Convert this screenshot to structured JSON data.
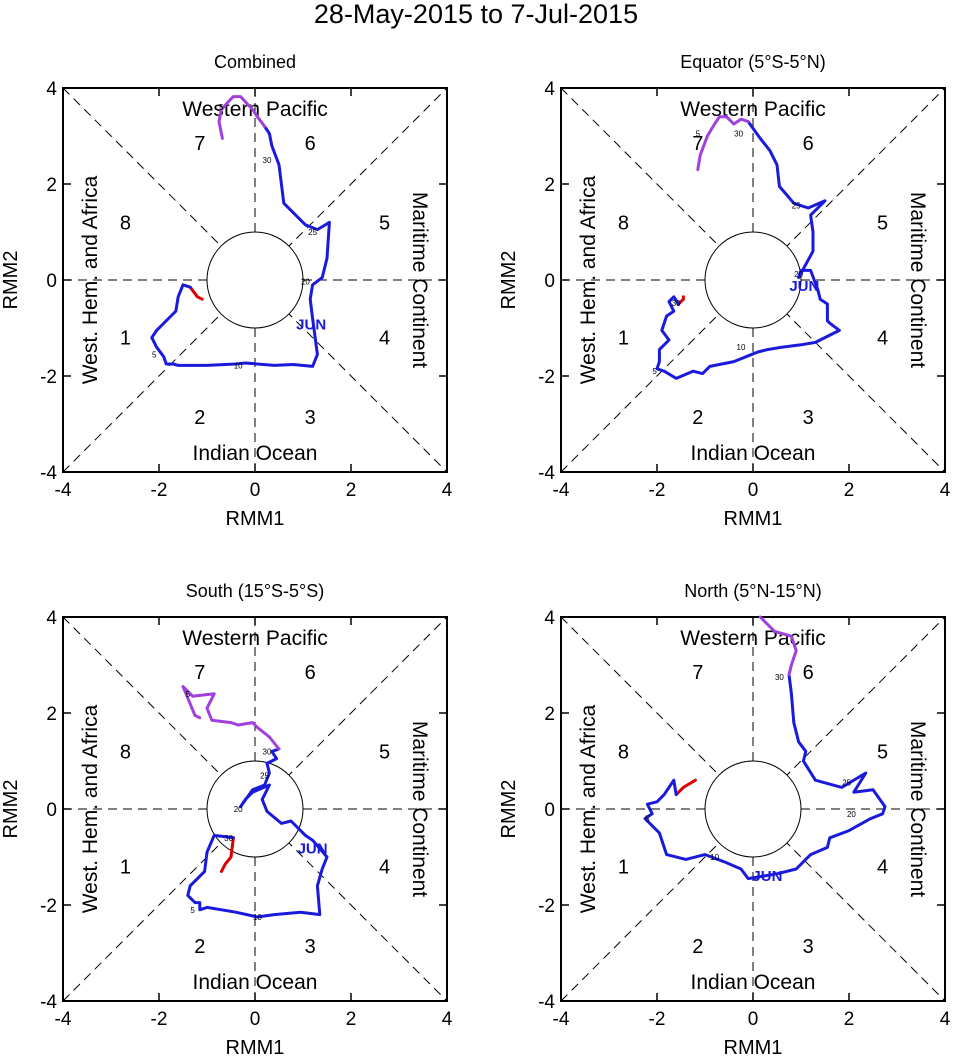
{
  "figure": {
    "title": "28-May-2015 to 7-Jul-2015"
  },
  "phase_labels": {
    "top": "Western Pacific",
    "bottom": "Indian Ocean",
    "left": "West. Hem. and Africa",
    "right": "Maritime Continent",
    "phases": [
      "1",
      "2",
      "3",
      "4",
      "5",
      "6",
      "7",
      "8"
    ]
  },
  "colors": {
    "may": "#dd0000",
    "jun": "#1a1add",
    "jul": "#a040dd",
    "axis": "#000000",
    "jun_label": "#1a1add"
  },
  "chart_data": [
    {
      "type": "line",
      "title": "Combined",
      "xlabel": "RMM1",
      "ylabel": "RMM2",
      "xlim": [
        -4,
        4
      ],
      "ylim": [
        -4,
        4
      ],
      "xticks": [
        "-4",
        "-2",
        "0",
        "2",
        "4"
      ],
      "yticks": [
        "-4",
        "-2",
        "0",
        "2",
        "4"
      ],
      "month_label": {
        "text": "JUN",
        "x": 1.17,
        "y": -0.93
      },
      "series": [
        {
          "name": "May",
          "color": "#dd0000",
          "points": [
            [
              -1.35,
              -0.15
            ],
            [
              -1.2,
              -0.35
            ],
            [
              -1.1,
              -0.4
            ]
          ]
        },
        {
          "name": "Jun",
          "color": "#1a1add",
          "points": [
            [
              -1.35,
              -0.15
            ],
            [
              -1.5,
              -0.1
            ],
            [
              -1.6,
              -0.35
            ],
            [
              -1.65,
              -0.65
            ],
            [
              -1.75,
              -0.75
            ],
            [
              -2.05,
              -1.05
            ],
            [
              -2.15,
              -1.2
            ],
            [
              -2.05,
              -1.4
            ],
            [
              -1.9,
              -1.6
            ],
            [
              -1.85,
              -1.75
            ],
            [
              -1.7,
              -1.75
            ],
            [
              -1.6,
              -1.78
            ],
            [
              -1.0,
              -1.78
            ],
            [
              -0.4,
              -1.75
            ],
            [
              -0.2,
              -1.73
            ],
            [
              0.4,
              -1.78
            ],
            [
              0.8,
              -1.76
            ],
            [
              1.2,
              -1.8
            ],
            [
              1.3,
              -1.55
            ],
            [
              1.2,
              -0.8
            ],
            [
              1.15,
              -0.4
            ],
            [
              1.2,
              -0.1
            ],
            [
              1.4,
              0.05
            ],
            [
              1.5,
              0.45
            ],
            [
              1.55,
              1.2
            ],
            [
              1.3,
              1.05
            ],
            [
              1.05,
              1.15
            ],
            [
              0.8,
              1.4
            ],
            [
              0.6,
              1.6
            ],
            [
              0.55,
              2.0
            ],
            [
              0.5,
              2.4
            ],
            [
              0.35,
              2.8
            ],
            [
              0.3,
              3.05
            ],
            [
              0.2,
              3.2
            ]
          ]
        },
        {
          "name": "Jul",
          "color": "#a040dd",
          "points": [
            [
              0.2,
              3.2
            ],
            [
              0.05,
              3.4
            ],
            [
              -0.05,
              3.55
            ],
            [
              -0.3,
              3.82
            ],
            [
              -0.45,
              3.82
            ],
            [
              -0.55,
              3.72
            ],
            [
              -0.7,
              3.55
            ],
            [
              -0.75,
              3.3
            ],
            [
              -0.68,
              2.95
            ]
          ]
        }
      ],
      "day_labels": [
        {
          "text": "5",
          "x": -2.1,
          "y": -1.55
        },
        {
          "text": "10",
          "x": -0.35,
          "y": -1.78
        },
        {
          "text": "20",
          "x": 1.05,
          "y": -0.03
        },
        {
          "text": "25",
          "x": 1.2,
          "y": 1.0
        },
        {
          "text": "30",
          "x": 0.25,
          "y": 2.5
        },
        {
          "text": "5",
          "x": -0.7,
          "y": 3.6
        }
      ]
    },
    {
      "type": "line",
      "title": "Equator (5°S-5°N)",
      "xlabel": "RMM1",
      "ylabel": "RMM2",
      "xlim": [
        -4,
        4
      ],
      "ylim": [
        -4,
        4
      ],
      "xticks": [
        "-4",
        "-2",
        "0",
        "2",
        "4"
      ],
      "yticks": [
        "-4",
        "-2",
        "0",
        "2",
        "4"
      ],
      "month_label": {
        "text": "JUN",
        "x": 1.07,
        "y": -0.12
      },
      "series": [
        {
          "name": "May",
          "color": "#dd0000",
          "points": [
            [
              -1.55,
              -0.5
            ],
            [
              -1.45,
              -0.4
            ],
            [
              -1.45,
              -0.35
            ]
          ]
        },
        {
          "name": "Jun",
          "color": "#1a1add",
          "points": [
            [
              -1.55,
              -0.5
            ],
            [
              -1.65,
              -0.35
            ],
            [
              -1.75,
              -0.45
            ],
            [
              -1.65,
              -0.65
            ],
            [
              -1.8,
              -0.75
            ],
            [
              -1.9,
              -1.05
            ],
            [
              -1.75,
              -1.25
            ],
            [
              -1.95,
              -1.45
            ],
            [
              -1.95,
              -1.7
            ],
            [
              -2.0,
              -1.85
            ],
            [
              -1.85,
              -1.9
            ],
            [
              -1.6,
              -2.05
            ],
            [
              -1.25,
              -1.9
            ],
            [
              -1.05,
              -1.95
            ],
            [
              -0.9,
              -1.8
            ],
            [
              -0.4,
              -1.7
            ],
            [
              -0.15,
              -1.6
            ],
            [
              0.1,
              -1.5
            ],
            [
              0.3,
              -1.45
            ],
            [
              0.6,
              -1.4
            ],
            [
              1.0,
              -1.35
            ],
            [
              1.3,
              -1.3
            ],
            [
              1.8,
              -1.05
            ],
            [
              1.6,
              -0.9
            ],
            [
              1.55,
              -0.85
            ],
            [
              1.55,
              -0.5
            ],
            [
              1.4,
              -0.4
            ],
            [
              1.35,
              -0.2
            ],
            [
              1.2,
              0.2
            ],
            [
              1.0,
              0.2
            ],
            [
              0.95,
              0.05
            ],
            [
              1.25,
              0.6
            ],
            [
              1.25,
              1.0
            ],
            [
              1.2,
              1.35
            ],
            [
              1.5,
              1.65
            ],
            [
              1.15,
              1.5
            ],
            [
              0.85,
              1.6
            ],
            [
              0.55,
              1.95
            ],
            [
              0.5,
              2.4
            ],
            [
              0.35,
              2.7
            ],
            [
              0.15,
              2.95
            ],
            [
              -0.1,
              3.3
            ]
          ]
        },
        {
          "name": "Jul",
          "color": "#a040dd",
          "points": [
            [
              -0.1,
              3.3
            ],
            [
              -0.25,
              3.35
            ],
            [
              -0.4,
              3.25
            ],
            [
              -0.55,
              3.4
            ],
            [
              -0.7,
              3.4
            ],
            [
              -0.8,
              3.25
            ],
            [
              -0.95,
              3.0
            ],
            [
              -1.1,
              2.6
            ],
            [
              -1.15,
              2.3
            ]
          ]
        }
      ],
      "day_labels": [
        {
          "text": "5",
          "x": -2.05,
          "y": -1.9
        },
        {
          "text": "10",
          "x": -0.25,
          "y": -1.4
        },
        {
          "text": "20",
          "x": 0.95,
          "y": 0.12
        },
        {
          "text": "25",
          "x": 0.9,
          "y": 1.55
        },
        {
          "text": "30",
          "x": -0.3,
          "y": 3.05
        },
        {
          "text": "5",
          "x": -1.15,
          "y": 3.05
        },
        {
          "text": "30",
          "x": -1.6,
          "y": -0.48
        }
      ]
    },
    {
      "type": "line",
      "title": "South (15°S-5°S)",
      "xlabel": "RMM1",
      "ylabel": "RMM2",
      "xlim": [
        -4,
        4
      ],
      "ylim": [
        -4,
        4
      ],
      "xticks": [
        "-4",
        "-2",
        "0",
        "2",
        "4"
      ],
      "yticks": [
        "-4",
        "-2",
        "0",
        "2",
        "4"
      ],
      "month_label": {
        "text": "JUN",
        "x": 1.2,
        "y": -0.82
      },
      "series": [
        {
          "name": "May",
          "color": "#dd0000",
          "points": [
            [
              -0.45,
              -0.6
            ],
            [
              -0.5,
              -1.0
            ],
            [
              -0.62,
              -1.15
            ],
            [
              -0.7,
              -1.3
            ]
          ]
        },
        {
          "name": "Jun",
          "color": "#1a1add",
          "points": [
            [
              -0.45,
              -0.6
            ],
            [
              -0.85,
              -0.55
            ],
            [
              -1.0,
              -0.9
            ],
            [
              -1.05,
              -1.3
            ],
            [
              -1.35,
              -1.6
            ],
            [
              -1.4,
              -1.8
            ],
            [
              -1.25,
              -1.95
            ],
            [
              -1.15,
              -1.95
            ],
            [
              -1.15,
              -2.1
            ],
            [
              -1.0,
              -2.05
            ],
            [
              -0.4,
              -2.15
            ],
            [
              0.05,
              -2.25
            ],
            [
              0.4,
              -2.2
            ],
            [
              0.95,
              -2.15
            ],
            [
              1.35,
              -2.2
            ],
            [
              1.3,
              -1.6
            ],
            [
              1.4,
              -1.25
            ],
            [
              1.5,
              -1.0
            ],
            [
              1.2,
              -0.65
            ],
            [
              1.05,
              -0.55
            ],
            [
              0.75,
              -0.25
            ],
            [
              0.55,
              -0.3
            ],
            [
              0.25,
              -0.05
            ],
            [
              0.15,
              0.2
            ],
            [
              0.3,
              0.5
            ],
            [
              -0.05,
              0.35
            ],
            [
              -0.2,
              0.2
            ],
            [
              -0.3,
              0.05
            ],
            [
              -0.05,
              0.4
            ],
            [
              0.2,
              0.5
            ],
            [
              0.3,
              0.75
            ],
            [
              0.25,
              0.95
            ],
            [
              0.45,
              1.05
            ],
            [
              0.35,
              1.2
            ],
            [
              0.5,
              1.25
            ]
          ]
        },
        {
          "name": "Jul",
          "color": "#a040dd",
          "points": [
            [
              0.5,
              1.25
            ],
            [
              0.3,
              1.5
            ],
            [
              0.05,
              1.7
            ],
            [
              -0.05,
              1.8
            ],
            [
              -0.35,
              1.75
            ],
            [
              -0.5,
              1.8
            ],
            [
              -0.9,
              1.85
            ],
            [
              -1.0,
              2.1
            ],
            [
              -0.85,
              2.4
            ],
            [
              -1.3,
              2.35
            ],
            [
              -1.5,
              2.55
            ],
            [
              -1.25,
              1.95
            ],
            [
              -1.15,
              1.9
            ]
          ]
        }
      ],
      "day_labels": [
        {
          "text": "5",
          "x": -1.3,
          "y": -2.1
        },
        {
          "text": "10",
          "x": 0.05,
          "y": -2.25
        },
        {
          "text": "20",
          "x": -0.35,
          "y": 0.0
        },
        {
          "text": "25",
          "x": 0.2,
          "y": 0.7
        },
        {
          "text": "30",
          "x": 0.25,
          "y": 1.2
        },
        {
          "text": "5",
          "x": -1.4,
          "y": 2.4
        },
        {
          "text": "30",
          "x": -0.55,
          "y": -0.6
        }
      ]
    },
    {
      "type": "line",
      "title": "North (5°N-15°N)",
      "xlabel": "RMM1",
      "ylabel": "RMM2",
      "xlim": [
        -4,
        4
      ],
      "ylim": [
        -4,
        4
      ],
      "xticks": [
        "-4",
        "-2",
        "0",
        "2",
        "4"
      ],
      "yticks": [
        "-4",
        "-2",
        "0",
        "2",
        "4"
      ],
      "month_label": {
        "text": "JUN",
        "x": 0.3,
        "y": -1.4
      },
      "series": [
        {
          "name": "May",
          "color": "#dd0000",
          "points": [
            [
              -1.6,
              0.3
            ],
            [
              -1.45,
              0.45
            ],
            [
              -1.2,
              0.6
            ]
          ]
        },
        {
          "name": "Jun",
          "color": "#1a1add",
          "points": [
            [
              -1.6,
              0.3
            ],
            [
              -1.65,
              0.6
            ],
            [
              -1.85,
              0.3
            ],
            [
              -2.0,
              0.15
            ],
            [
              -2.2,
              0.1
            ],
            [
              -2.1,
              -0.1
            ],
            [
              -2.25,
              -0.2
            ],
            [
              -1.95,
              -0.5
            ],
            [
              -1.8,
              -0.95
            ],
            [
              -1.4,
              -1.05
            ],
            [
              -1.0,
              -0.95
            ],
            [
              -0.6,
              -1.1
            ],
            [
              -0.25,
              -1.25
            ],
            [
              -0.1,
              -1.45
            ],
            [
              0.5,
              -1.35
            ],
            [
              0.9,
              -1.25
            ],
            [
              1.2,
              -0.95
            ],
            [
              1.55,
              -0.8
            ],
            [
              1.6,
              -0.6
            ],
            [
              2.0,
              -0.45
            ],
            [
              2.45,
              -0.2
            ],
            [
              2.7,
              -0.1
            ],
            [
              2.75,
              0.05
            ],
            [
              2.5,
              0.4
            ],
            [
              2.1,
              0.35
            ],
            [
              2.35,
              0.75
            ],
            [
              1.85,
              0.45
            ],
            [
              1.3,
              0.6
            ],
            [
              1.05,
              1.0
            ],
            [
              1.1,
              1.2
            ],
            [
              0.95,
              1.4
            ],
            [
              0.85,
              1.8
            ],
            [
              0.8,
              2.4
            ],
            [
              0.75,
              2.8
            ]
          ]
        },
        {
          "name": "Jul",
          "color": "#a040dd",
          "points": [
            [
              0.75,
              2.8
            ],
            [
              0.8,
              3.0
            ],
            [
              0.9,
              3.3
            ],
            [
              0.8,
              3.6
            ],
            [
              0.45,
              3.7
            ],
            [
              0.25,
              3.9
            ],
            [
              0.15,
              4.0
            ]
          ]
        }
      ],
      "day_labels": [
        {
          "text": "5",
          "x": -2.2,
          "y": -0.2
        },
        {
          "text": "10",
          "x": -0.8,
          "y": -1.0
        },
        {
          "text": "20",
          "x": 2.05,
          "y": -0.1
        },
        {
          "text": "25",
          "x": 1.95,
          "y": 0.55
        },
        {
          "text": "30",
          "x": 0.55,
          "y": 2.75
        }
      ]
    }
  ]
}
